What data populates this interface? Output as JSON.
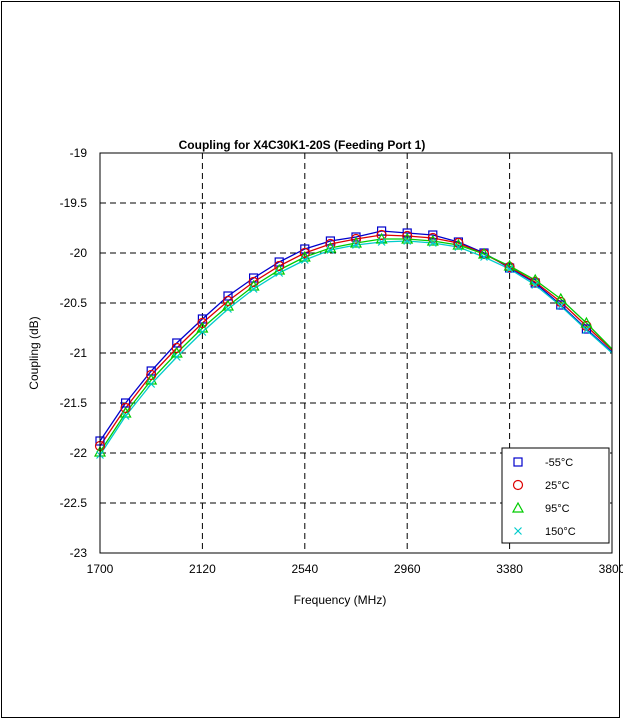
{
  "chart_data": {
    "type": "line",
    "title": "Coupling for X4C30K1-20S (Feeding Port 1)",
    "xlabel": "Frequency (MHz)",
    "ylabel": "Coupling (dB)",
    "xlim": [
      1700,
      3800
    ],
    "ylim": [
      -23,
      -19
    ],
    "xticks": [
      1700,
      2120,
      2540,
      2960,
      3380,
      3800
    ],
    "yticks": [
      -19,
      -19.5,
      -20,
      -20.5,
      -21,
      -21.5,
      -22,
      -22.5,
      -23
    ],
    "xtick_labels": [
      "1700",
      "2120",
      "2540",
      "2960",
      "3380",
      "3800"
    ],
    "ytick_labels": [
      "-19",
      "-19.5",
      "-20",
      "-20.5",
      "-21",
      "-21.5",
      "-22",
      "-22.5",
      "-23"
    ],
    "grid": true,
    "legend_position": "bottom-right",
    "series": [
      {
        "name": "-55°C",
        "marker": "square",
        "color": "#0000cc",
        "x": [
          1700,
          1805,
          1910,
          2015,
          2120,
          2225,
          2330,
          2435,
          2540,
          2645,
          2750,
          2855,
          2960,
          3065,
          3170,
          3275,
          3380,
          3485,
          3590,
          3695,
          3800
        ],
        "values": [
          -21.88,
          -21.5,
          -21.18,
          -20.9,
          -20.66,
          -20.43,
          -20.25,
          -20.09,
          -19.96,
          -19.88,
          -19.84,
          -19.78,
          -19.8,
          -19.82,
          -19.89,
          -20.0,
          -20.15,
          -20.3,
          -20.52,
          -20.76,
          -20.99
        ]
      },
      {
        "name": "25°C",
        "marker": "circle",
        "color": "#dd0000",
        "x": [
          1700,
          1805,
          1910,
          2015,
          2120,
          2225,
          2330,
          2435,
          2540,
          2645,
          2750,
          2855,
          2960,
          3065,
          3170,
          3275,
          3380,
          3485,
          3590,
          3695,
          3800
        ],
        "values": [
          -21.93,
          -21.55,
          -21.22,
          -20.95,
          -20.7,
          -20.48,
          -20.29,
          -20.13,
          -20.0,
          -19.91,
          -19.86,
          -19.82,
          -19.83,
          -19.85,
          -19.9,
          -20.01,
          -20.14,
          -20.29,
          -20.49,
          -20.73,
          -20.97
        ]
      },
      {
        "name": "95°C",
        "marker": "triangle",
        "color": "#00cc00",
        "x": [
          1700,
          1805,
          1910,
          2015,
          2120,
          2225,
          2330,
          2435,
          2540,
          2645,
          2750,
          2855,
          2960,
          3065,
          3170,
          3275,
          3380,
          3485,
          3590,
          3695,
          3800
        ],
        "values": [
          -21.99,
          -21.6,
          -21.27,
          -21.0,
          -20.75,
          -20.53,
          -20.33,
          -20.17,
          -20.04,
          -19.95,
          -19.9,
          -19.86,
          -19.86,
          -19.88,
          -19.92,
          -20.01,
          -20.13,
          -20.27,
          -20.46,
          -20.7,
          -20.96
        ]
      },
      {
        "name": "150°C",
        "marker": "x",
        "color": "#00cccc",
        "x": [
          1700,
          1805,
          1910,
          2015,
          2120,
          2225,
          2330,
          2435,
          2540,
          2645,
          2750,
          2855,
          2960,
          3065,
          3170,
          3275,
          3380,
          3485,
          3590,
          3695,
          3800
        ],
        "values": [
          -22.02,
          -21.63,
          -21.31,
          -21.04,
          -20.79,
          -20.56,
          -20.36,
          -20.2,
          -20.07,
          -19.97,
          -19.92,
          -19.89,
          -19.88,
          -19.9,
          -19.94,
          -20.04,
          -20.16,
          -20.32,
          -20.53,
          -20.77,
          -21.0
        ]
      }
    ]
  }
}
